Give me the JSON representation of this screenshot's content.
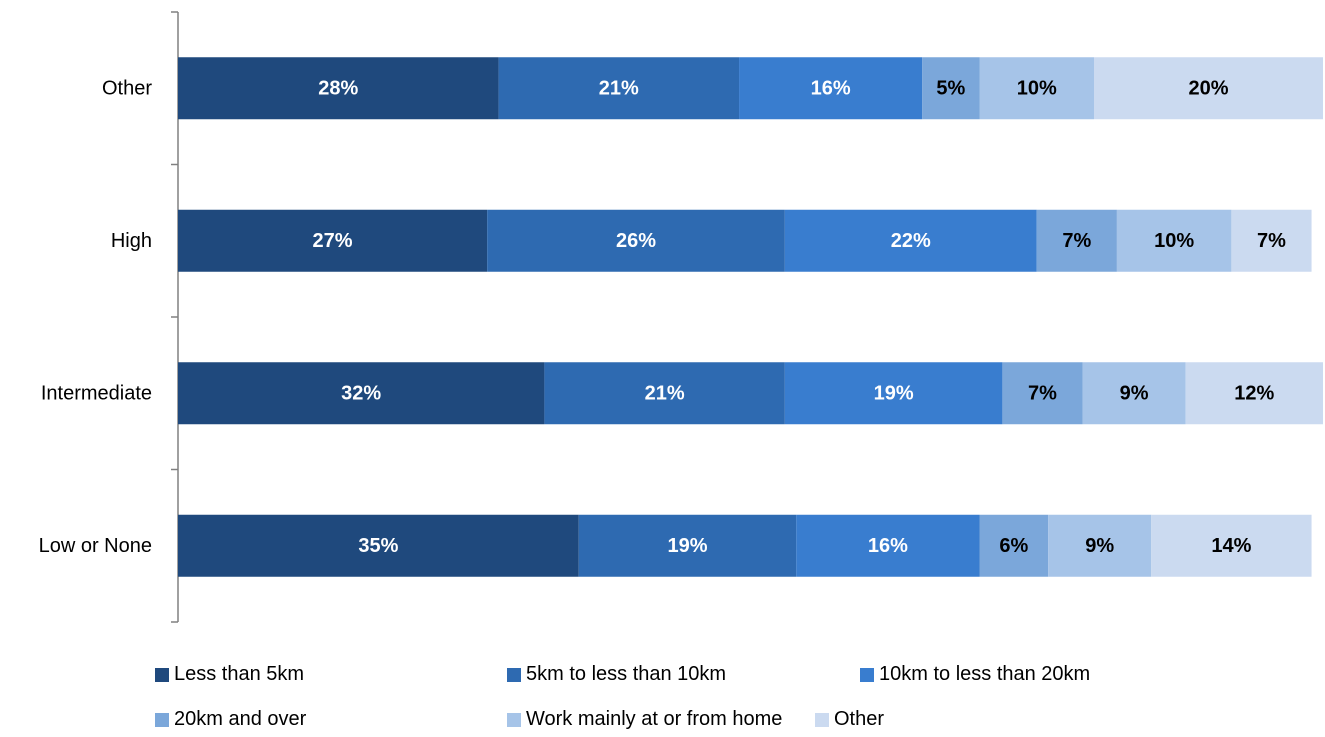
{
  "chart_data": {
    "type": "bar",
    "orientation": "horizontal",
    "stacked": true,
    "categories": [
      "Other",
      "High",
      "Intermediate",
      "Low or None"
    ],
    "series": [
      {
        "name": "Less than 5km",
        "values": [
          28,
          27,
          32,
          35
        ],
        "color": "#1F497D"
      },
      {
        "name": "5km to less than 10km",
        "values": [
          21,
          26,
          21,
          19
        ],
        "color": "#2E6AB1"
      },
      {
        "name": "10km to less than 20km",
        "values": [
          16,
          22,
          19,
          16
        ],
        "color": "#397DCF"
      },
      {
        "name": "20km and over",
        "values": [
          5,
          7,
          7,
          6
        ],
        "color": "#7BA7DA"
      },
      {
        "name": "Work mainly at or from home",
        "values": [
          10,
          10,
          9,
          9
        ],
        "color": "#A6C4E8"
      },
      {
        "name": "Other",
        "values": [
          20,
          7,
          12,
          14
        ],
        "color": "#CBDAF0"
      }
    ],
    "data_labels": [
      [
        "28%",
        "21%",
        "16%",
        "5%",
        "10%",
        "20%"
      ],
      [
        "27%",
        "26%",
        "22%",
        "7%",
        "10%",
        "7%"
      ],
      [
        "32%",
        "21%",
        "19%",
        "7%",
        "9%",
        "12%"
      ],
      [
        "35%",
        "19%",
        "16%",
        "6%",
        "9%",
        "14%"
      ]
    ],
    "xlim": [
      0,
      100
    ],
    "grid": false,
    "legend_position": "bottom"
  }
}
